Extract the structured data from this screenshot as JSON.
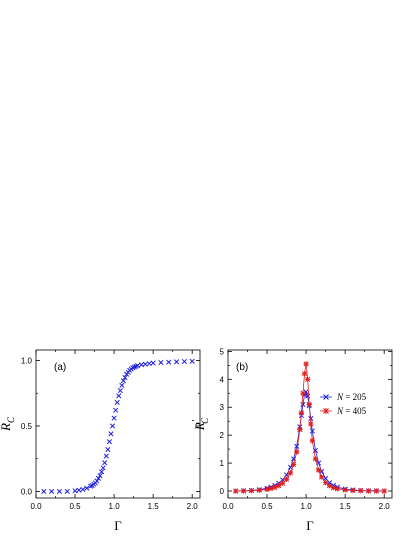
{
  "chart_data": [
    {
      "type": "scatter",
      "panel": "(a)",
      "xlabel": "Γ",
      "ylabel_main": "R",
      "ylabel_sub": "C",
      "xlim": [
        0.0,
        2.1
      ],
      "ylim": [
        -0.05,
        1.08
      ],
      "xticks": [
        "0.0",
        "0.5",
        "1.0",
        "1.5",
        "2.0"
      ],
      "xtick_values": [
        0.0,
        0.5,
        1.0,
        1.5,
        2.0
      ],
      "yticks": [
        "0.0",
        "0.5",
        "1.0"
      ],
      "ytick_values": [
        0.0,
        0.5,
        1.0
      ],
      "color": "#1f1fe0",
      "marker": "x",
      "series": [
        {
          "x": [
            0.1,
            0.2,
            0.3,
            0.4,
            0.5,
            0.55,
            0.6,
            0.65,
            0.7,
            0.72,
            0.74,
            0.76,
            0.78,
            0.8,
            0.82,
            0.84,
            0.86,
            0.88,
            0.9,
            0.92,
            0.94,
            0.96,
            0.98,
            1.0,
            1.02,
            1.04,
            1.06,
            1.08,
            1.1,
            1.12,
            1.14,
            1.16,
            1.18,
            1.2,
            1.22,
            1.24,
            1.26,
            1.28,
            1.3,
            1.35,
            1.4,
            1.45,
            1.5,
            1.6,
            1.7,
            1.8,
            1.9,
            2.0
          ],
          "y": [
            0.0,
            0.0,
            0.0,
            0.0,
            0.005,
            0.01,
            0.015,
            0.025,
            0.04,
            0.045,
            0.055,
            0.065,
            0.08,
            0.1,
            0.12,
            0.15,
            0.18,
            0.22,
            0.27,
            0.32,
            0.38,
            0.44,
            0.5,
            0.56,
            0.62,
            0.68,
            0.73,
            0.77,
            0.81,
            0.845,
            0.87,
            0.895,
            0.91,
            0.925,
            0.935,
            0.945,
            0.95,
            0.955,
            0.96,
            0.967,
            0.972,
            0.976,
            0.98,
            0.984,
            0.987,
            0.99,
            0.992,
            0.994
          ]
        }
      ]
    },
    {
      "type": "line",
      "panel": "(b)",
      "xlabel": "Γ",
      "ylabel_main": "R",
      "ylabel_sub": "C",
      "ylabel_prime": "′",
      "xlim": [
        0.0,
        2.1
      ],
      "ylim": [
        -0.25,
        5.05
      ],
      "xticks": [
        "0.0",
        "0.5",
        "1.0",
        "1.5",
        "2.0"
      ],
      "xtick_values": [
        0.0,
        0.5,
        1.0,
        1.5,
        2.0
      ],
      "yticks": [
        "0",
        "1",
        "2",
        "3",
        "4",
        "5"
      ],
      "ytick_values": [
        0,
        1,
        2,
        3,
        4,
        5
      ],
      "legend_position": "right",
      "series": [
        {
          "name_var": "N",
          "name_rest": " = 205",
          "color": "#1f1fe0",
          "marker": "x",
          "x": [
            0.1,
            0.2,
            0.3,
            0.4,
            0.5,
            0.55,
            0.6,
            0.65,
            0.7,
            0.75,
            0.8,
            0.84,
            0.88,
            0.92,
            0.94,
            0.96,
            0.98,
            1.0,
            1.02,
            1.04,
            1.06,
            1.08,
            1.12,
            1.16,
            1.2,
            1.25,
            1.3,
            1.35,
            1.4,
            1.5,
            1.6,
            1.7,
            1.8,
            1.9,
            2.0
          ],
          "y": [
            0.0,
            0.01,
            0.02,
            0.05,
            0.1,
            0.14,
            0.2,
            0.28,
            0.4,
            0.58,
            0.85,
            1.15,
            1.6,
            2.3,
            2.7,
            3.1,
            3.45,
            3.55,
            3.4,
            3.05,
            2.6,
            2.15,
            1.45,
            1.0,
            0.7,
            0.45,
            0.3,
            0.2,
            0.14,
            0.07,
            0.04,
            0.02,
            0.01,
            0.01,
            0.0
          ]
        },
        {
          "name_var": "N",
          "name_rest": " = 405",
          "color": "#e01f1f",
          "marker": "asterisk",
          "x": [
            0.1,
            0.2,
            0.3,
            0.4,
            0.5,
            0.55,
            0.6,
            0.65,
            0.7,
            0.75,
            0.8,
            0.84,
            0.88,
            0.92,
            0.94,
            0.96,
            0.98,
            1.0,
            1.02,
            1.04,
            1.06,
            1.08,
            1.12,
            1.16,
            1.2,
            1.25,
            1.3,
            1.35,
            1.4,
            1.5,
            1.6,
            1.7,
            1.8,
            1.9,
            2.0
          ],
          "y": [
            0.0,
            0.0,
            0.01,
            0.03,
            0.06,
            0.09,
            0.13,
            0.19,
            0.28,
            0.42,
            0.65,
            0.95,
            1.4,
            2.2,
            2.8,
            3.5,
            4.2,
            4.55,
            4.0,
            3.1,
            2.4,
            1.8,
            1.15,
            0.75,
            0.5,
            0.3,
            0.19,
            0.12,
            0.08,
            0.04,
            0.02,
            0.01,
            0.0,
            0.0,
            0.0
          ]
        }
      ]
    }
  ]
}
